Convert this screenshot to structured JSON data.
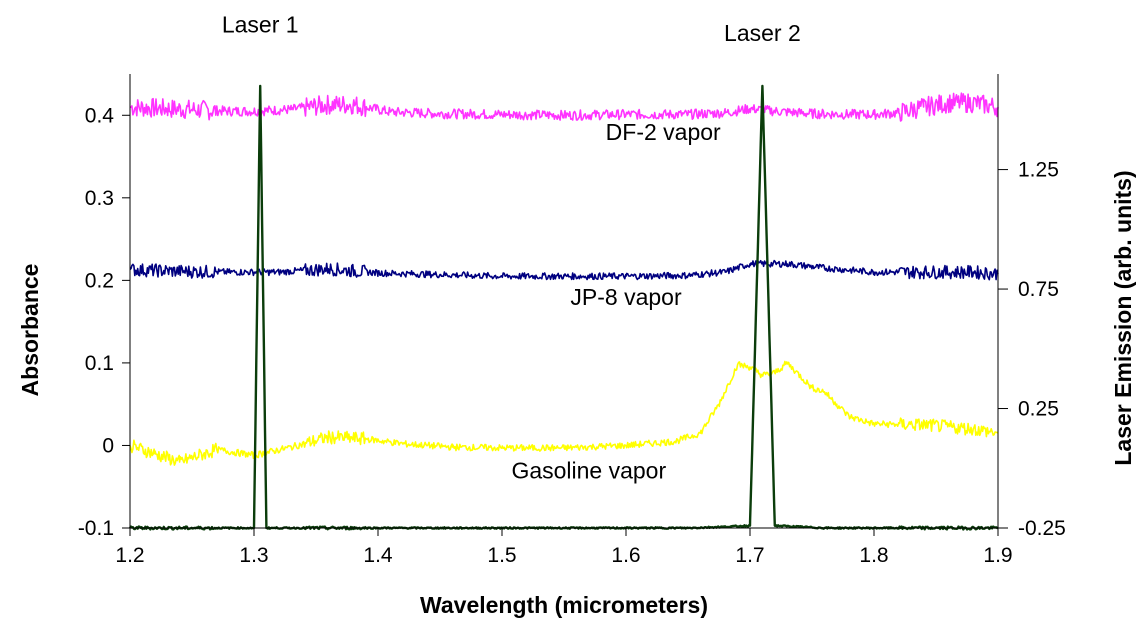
{
  "chart_data": {
    "type": "line",
    "title": "",
    "xlabel": "Wavelength (micrometers)",
    "ylabel": "Absorbance",
    "y2label": "Laser Emission (arb. units)",
    "xlim": [
      1.2,
      1.9
    ],
    "ylim": [
      -0.1,
      0.45
    ],
    "y2lim": [
      -0.25,
      1.65
    ],
    "x_ticks": [
      "1.2",
      "1.3",
      "1.4",
      "1.5",
      "1.6",
      "1.7",
      "1.8",
      "1.9"
    ],
    "y_ticks": [
      "-0.1",
      "0",
      "0.1",
      "0.2",
      "0.3",
      "0.4"
    ],
    "y2_ticks": [
      "-0.25",
      "0.25",
      "0.75",
      "1.25"
    ],
    "grid": false,
    "legend": "none",
    "annotations": [
      {
        "text": "Laser 1",
        "x": 1.305,
        "y": 0.5
      },
      {
        "text": "Laser 2",
        "x": 1.71,
        "y": 0.49
      },
      {
        "text": "DF-2 vapor",
        "x": 1.63,
        "y": 0.37
      },
      {
        "text": "JP-8 vapor",
        "x": 1.6,
        "y": 0.17
      },
      {
        "text": "Gasoline vapor",
        "x": 1.57,
        "y": -0.04
      }
    ],
    "series": [
      {
        "axis": "left",
        "color": "#ff33ff",
        "noise": 0.006,
        "x": [
          1.2,
          1.23,
          1.25,
          1.28,
          1.3,
          1.33,
          1.36,
          1.38,
          1.41,
          1.45,
          1.5,
          1.55,
          1.6,
          1.65,
          1.68,
          1.7,
          1.72,
          1.75,
          1.78,
          1.8,
          1.82,
          1.84,
          1.86,
          1.88,
          1.9
        ],
        "y": [
          0.41,
          0.408,
          0.407,
          0.405,
          0.405,
          0.407,
          0.413,
          0.413,
          0.404,
          0.402,
          0.401,
          0.4,
          0.401,
          0.401,
          0.403,
          0.408,
          0.405,
          0.402,
          0.401,
          0.401,
          0.403,
          0.41,
          0.415,
          0.415,
          0.41
        ]
      },
      {
        "axis": "left",
        "color": "#000080",
        "noise": 0.004,
        "x": [
          1.2,
          1.24,
          1.28,
          1.32,
          1.36,
          1.4,
          1.45,
          1.5,
          1.55,
          1.6,
          1.65,
          1.68,
          1.7,
          1.73,
          1.76,
          1.8,
          1.84,
          1.88,
          1.9
        ],
        "y": [
          0.213,
          0.211,
          0.21,
          0.21,
          0.214,
          0.209,
          0.207,
          0.205,
          0.205,
          0.205,
          0.206,
          0.21,
          0.22,
          0.22,
          0.215,
          0.21,
          0.21,
          0.21,
          0.208
        ]
      },
      {
        "axis": "left",
        "color": "#ffff00",
        "noise": 0.004,
        "x": [
          1.2,
          1.22,
          1.24,
          1.27,
          1.3,
          1.33,
          1.36,
          1.39,
          1.42,
          1.46,
          1.5,
          1.55,
          1.6,
          1.64,
          1.66,
          1.675,
          1.69,
          1.7,
          1.71,
          1.72,
          1.73,
          1.74,
          1.75,
          1.76,
          1.77,
          1.78,
          1.8,
          1.84,
          1.88,
          1.9
        ],
        "y": [
          0.0,
          -0.01,
          -0.02,
          -0.005,
          -0.012,
          -0.002,
          0.01,
          0.008,
          0.002,
          -0.002,
          -0.003,
          -0.003,
          0.0,
          0.005,
          0.015,
          0.05,
          0.098,
          0.095,
          0.085,
          0.088,
          0.1,
          0.085,
          0.07,
          0.065,
          0.05,
          0.035,
          0.026,
          0.025,
          0.02,
          0.015
        ]
      },
      {
        "axis": "right",
        "color": "#0b3d0b",
        "noise": 0.003,
        "x": [
          1.2,
          1.3,
          1.305,
          1.31,
          1.65,
          1.68,
          1.7,
          1.71,
          1.72,
          1.74,
          1.76,
          1.8,
          1.9
        ],
        "y": [
          -0.25,
          -0.25,
          1.6,
          -0.25,
          -0.25,
          -0.245,
          -0.24,
          1.6,
          -0.24,
          -0.245,
          -0.25,
          -0.25,
          -0.25
        ]
      }
    ]
  }
}
